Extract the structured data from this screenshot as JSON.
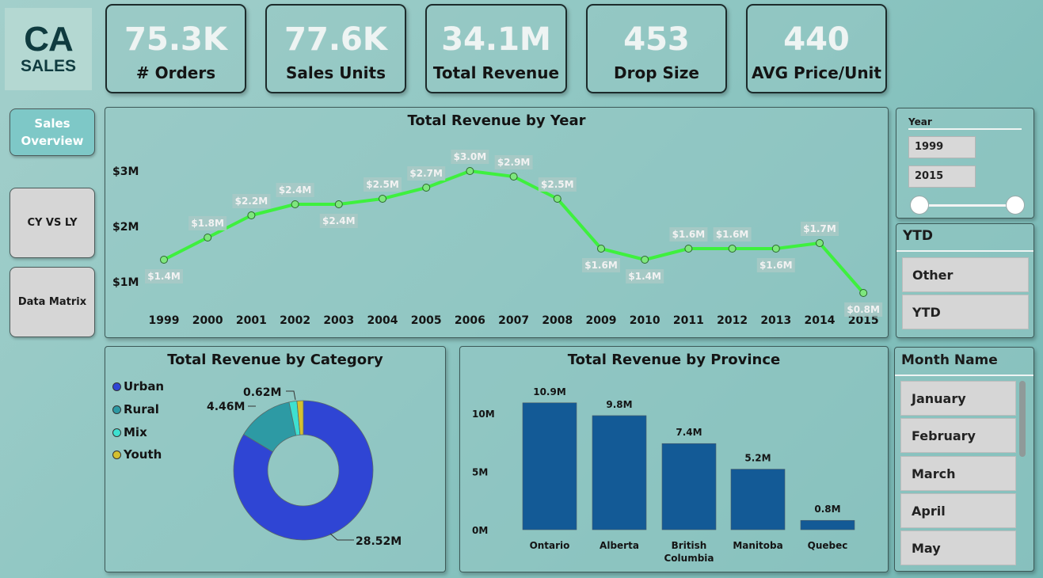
{
  "logo": {
    "line1": "CA",
    "line2": "SALES"
  },
  "kpis": [
    {
      "value": "75.3K",
      "label": "# Orders"
    },
    {
      "value": "77.6K",
      "label": "Sales Units"
    },
    {
      "value": "34.1M",
      "label": "Total Revenue"
    },
    {
      "value": "453",
      "label": "Drop Size"
    },
    {
      "value": "440",
      "label": "AVG Price/Unit"
    }
  ],
  "nav": [
    {
      "label": "Sales Overview"
    },
    {
      "label": "CY VS LY"
    },
    {
      "label": "Data Matrix"
    }
  ],
  "year_slicer": {
    "title": "Year",
    "from": "1999",
    "to": "2015"
  },
  "ytd_slicer": {
    "title": "YTD",
    "options": [
      "Other",
      "YTD"
    ]
  },
  "month_slicer": {
    "title": "Month Name",
    "options": [
      "January",
      "February",
      "March",
      "April",
      "May"
    ]
  },
  "colors": {
    "line": "#3ef03e",
    "urban": "#2f45d4",
    "rural": "#2d9aa4",
    "mix": "#3ee0d0",
    "youth": "#d4c030",
    "bar": "#135a96"
  },
  "chart_data": [
    {
      "type": "line",
      "title": "Total Revenue by Year",
      "x": [
        "1999",
        "2000",
        "2001",
        "2002",
        "2003",
        "2004",
        "2005",
        "2006",
        "2007",
        "2008",
        "2009",
        "2010",
        "2011",
        "2012",
        "2013",
        "2014",
        "2015"
      ],
      "values": [
        1.4,
        1.8,
        2.2,
        2.4,
        2.4,
        2.5,
        2.7,
        3.0,
        2.9,
        2.5,
        1.6,
        1.4,
        1.6,
        1.6,
        1.6,
        1.7,
        0.8
      ],
      "labels": [
        "$1.4M",
        "$1.8M",
        "$2.2M",
        "$2.4M",
        "$2.4M",
        "$2.5M",
        "$2.7M",
        "$3.0M",
        "$2.9M",
        "$2.5M",
        "$1.6M",
        "$1.4M",
        "$1.6M",
        "$1.6M",
        "$1.6M",
        "$1.7M",
        "$0.8M"
      ],
      "yticks": [
        "$1M",
        "$2M",
        "$3M"
      ],
      "ytick_values": [
        1,
        2,
        3
      ],
      "ylim": [
        0.75,
        3.2
      ],
      "grid": false
    },
    {
      "type": "pie",
      "title": "Total Revenue by Category",
      "categories": [
        "Urban",
        "Rural",
        "Mix",
        "Youth"
      ],
      "values": [
        28.52,
        4.46,
        0.62,
        0.5
      ],
      "labels": [
        "28.52M",
        "4.46M",
        "0.62M",
        ""
      ],
      "legend": "left"
    },
    {
      "type": "bar",
      "title": "Total Revenue by Province",
      "categories": [
        "Ontario",
        "Alberta",
        "British Columbia",
        "Manitoba",
        "Quebec"
      ],
      "values": [
        10.9,
        9.8,
        7.4,
        5.2,
        0.8
      ],
      "labels": [
        "10.9M",
        "9.8M",
        "7.4M",
        "5.2M",
        "0.8M"
      ],
      "yticks": [
        "0M",
        "5M",
        "10M"
      ],
      "ytick_values": [
        0,
        5,
        10
      ],
      "ylim": [
        0,
        11
      ]
    }
  ]
}
